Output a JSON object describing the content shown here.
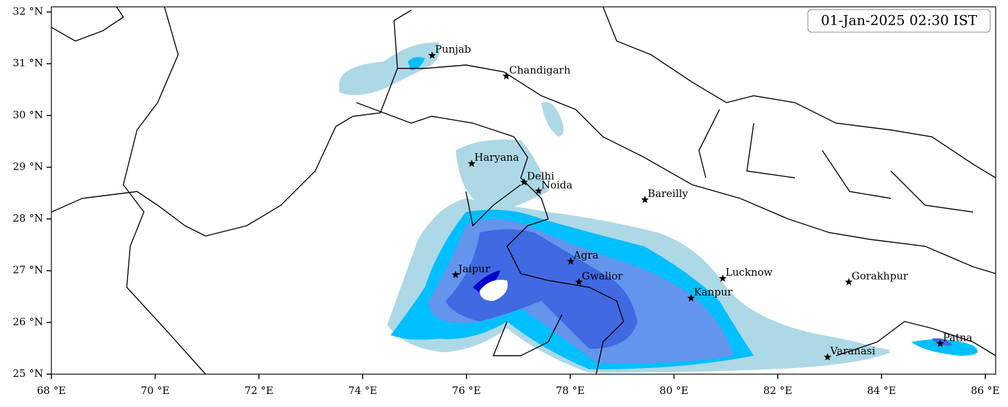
{
  "timestamp": "01-Jan-2025 02:30 IST",
  "xlim": [
    68,
    86.2
  ],
  "ylim": [
    25,
    32.1
  ],
  "lon_ticks": [
    {
      "value": 68,
      "label": "68 °E"
    },
    {
      "value": 70,
      "label": "70 °E"
    },
    {
      "value": 72,
      "label": "72 °E"
    },
    {
      "value": 74,
      "label": "74 °E"
    },
    {
      "value": 76,
      "label": "76 °E"
    },
    {
      "value": 78,
      "label": "78 °E"
    },
    {
      "value": 80,
      "label": "80 °E"
    },
    {
      "value": 82,
      "label": "82 °E"
    },
    {
      "value": 84,
      "label": "84 °E"
    },
    {
      "value": 86,
      "label": "86 °E"
    }
  ],
  "lat_ticks": [
    {
      "value": 25,
      "label": "25 °N"
    },
    {
      "value": 26,
      "label": "26 °N"
    },
    {
      "value": 27,
      "label": "27 °N"
    },
    {
      "value": 28,
      "label": "28 °N"
    },
    {
      "value": 29,
      "label": "29 °N"
    },
    {
      "value": 30,
      "label": "30 °N"
    },
    {
      "value": 31,
      "label": "31 °N"
    },
    {
      "value": 32,
      "label": "32 °N"
    }
  ],
  "cities": [
    {
      "name": "Punjab",
      "lon": 75.34,
      "lat": 31.16
    },
    {
      "name": "Chandigarh",
      "lon": 76.77,
      "lat": 30.76
    },
    {
      "name": "Haryana",
      "lon": 76.1,
      "lat": 29.07
    },
    {
      "name": "Delhi",
      "lon": 77.11,
      "lat": 28.71
    },
    {
      "name": "Noida",
      "lon": 77.39,
      "lat": 28.54
    },
    {
      "name": "Bareilly",
      "lon": 79.44,
      "lat": 28.37
    },
    {
      "name": "Agra",
      "lon": 78.01,
      "lat": 27.18
    },
    {
      "name": "Jaipur",
      "lon": 75.79,
      "lat": 26.92
    },
    {
      "name": "Gwalior",
      "lon": 78.17,
      "lat": 26.78
    },
    {
      "name": "Lucknow",
      "lon": 80.94,
      "lat": 26.85
    },
    {
      "name": "Kanpur",
      "lon": 80.33,
      "lat": 26.47
    },
    {
      "name": "Gorakhpur",
      "lon": 83.37,
      "lat": 26.78
    },
    {
      "name": "Varanasi",
      "lon": 82.96,
      "lat": 25.33
    },
    {
      "name": "Patna",
      "lon": 85.13,
      "lat": 25.59
    }
  ]
}
